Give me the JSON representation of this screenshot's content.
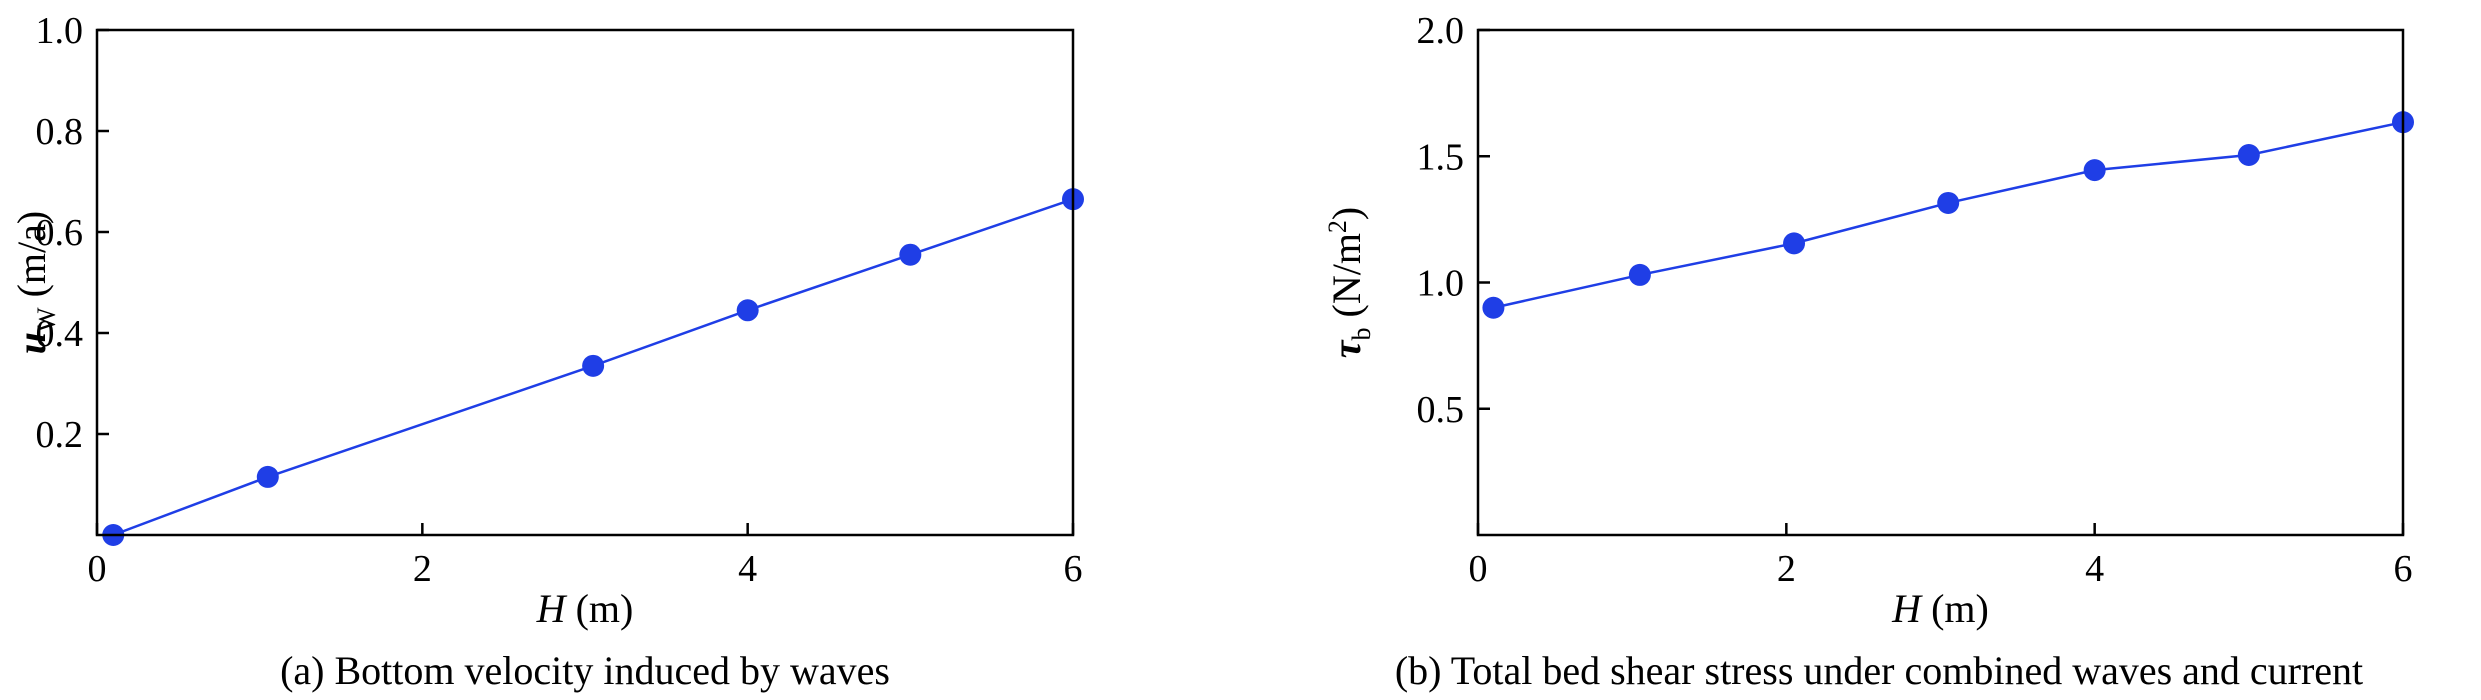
{
  "colors": {
    "series": "#1f3ee6",
    "axis": "#000000"
  },
  "chart_data": [
    {
      "type": "line",
      "caption": "(a) Bottom velocity induced by waves",
      "xlabel": {
        "symbol": "H",
        "unit": " (m)"
      },
      "ylabel": {
        "symbol": "u",
        "subscript": "W",
        "unit": " (m/a)"
      },
      "xlim": [
        0,
        6
      ],
      "ylim": [
        0,
        1.0
      ],
      "xticks": [
        0,
        2,
        4,
        6
      ],
      "xtick_labels": [
        "0",
        "2",
        "4",
        "6"
      ],
      "yticks": [
        0.2,
        0.4,
        0.6,
        0.8,
        1.0
      ],
      "ytick_labels": [
        "0.2",
        "0.4",
        "0.6",
        "0.8",
        "1.0"
      ],
      "grid": false,
      "series": [
        {
          "x": [
            0.1,
            1.05,
            3.05,
            4.0,
            5.0,
            6.0
          ],
          "y": [
            0.0,
            0.115,
            0.335,
            0.445,
            0.555,
            0.665
          ]
        }
      ]
    },
    {
      "type": "line",
      "caption": "(b) Total bed shear stress under combined waves and current",
      "xlabel": {
        "symbol": "H",
        "unit": " (m)"
      },
      "ylabel": {
        "symbol": "τ",
        "subscript": "b",
        "unit": " (N/m",
        "superscript": "2",
        "unit_end": ")"
      },
      "xlim": [
        0,
        6
      ],
      "ylim": [
        0,
        2.0
      ],
      "xticks": [
        0,
        2,
        4,
        6
      ],
      "xtick_labels": [
        "0",
        "2",
        "4",
        "6"
      ],
      "yticks": [
        0.5,
        1.0,
        1.5,
        2.0
      ],
      "ytick_labels": [
        "0.5",
        "1.0",
        "1.5",
        "2.0"
      ],
      "grid": false,
      "series": [
        {
          "x": [
            0.1,
            1.05,
            2.05,
            3.05,
            4.0,
            5.0,
            6.0
          ],
          "y": [
            0.9,
            1.03,
            1.155,
            1.315,
            1.445,
            1.505,
            1.635
          ]
        }
      ]
    }
  ]
}
